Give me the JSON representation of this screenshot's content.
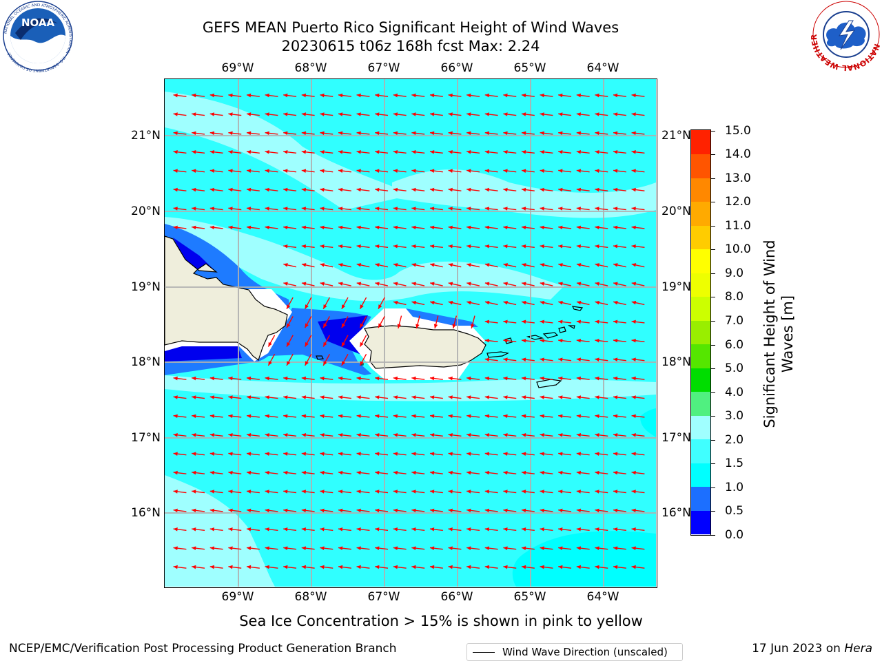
{
  "header": {
    "title_line1": "GEFS MEAN Puerto Rico Significant Height of Wind Waves",
    "title_line2": "20230615 t06z 168h fcst   Max: 2.24"
  },
  "logos": {
    "noaa_text": "NOAA",
    "noaa_ring_text": "NATIONAL OCEANIC AND ATMOSPHERIC ADMINISTRATION · U.S. DEPARTMENT OF COMMERCE",
    "nws_ring_text": "NATIONAL WEATHER SERVICE"
  },
  "map": {
    "lon_labels": [
      "69°W",
      "68°W",
      "67°W",
      "66°W",
      "65°W",
      "64°W"
    ],
    "lat_labels": [
      "21°N",
      "20°N",
      "19°N",
      "18°N",
      "17°N",
      "16°N"
    ],
    "legend_label": "Wind Wave Direction (unscaled)",
    "colors": {
      "ocean_main": "#30ffff",
      "ocean_light": "#9fffff",
      "ocean_cyan": "#00ffff",
      "mid_blue": "#1e7bff",
      "dark_blue": "#0000ee",
      "land": "#efeedc",
      "arrow": "#ff0000",
      "grid": "#b0b0b0"
    }
  },
  "colorbar": {
    "title": "Significant Height of Wind Waves [m]",
    "title_line1": "Significant Height of Wind",
    "title_line2": "Waves [m]",
    "tick_labels": [
      "0.0",
      "0.5",
      "1.0",
      "1.5",
      "2.0",
      "3.0",
      "4.0",
      "5.0",
      "6.0",
      "7.0",
      "8.0",
      "9.0",
      "10.0",
      "11.0",
      "12.0",
      "13.0",
      "14.0",
      "15.0"
    ],
    "colors": [
      "#0000ff",
      "#1c6fff",
      "#00ffff",
      "#40ffff",
      "#a0ffff",
      "#50f080",
      "#00dd00",
      "#55e600",
      "#99ee00",
      "#ccff00",
      "#eeff00",
      "#ffff00",
      "#ffcc00",
      "#ffaa00",
      "#ff8800",
      "#ff5500",
      "#ff2200"
    ]
  },
  "note": "Sea Ice Concentration > 15% is shown in pink to yellow",
  "footer": {
    "left": "NCEP/EMC/Verification Post Processing Product Generation Branch",
    "right_prefix": "17 Jun 2023 on ",
    "right_host": "Hera"
  }
}
